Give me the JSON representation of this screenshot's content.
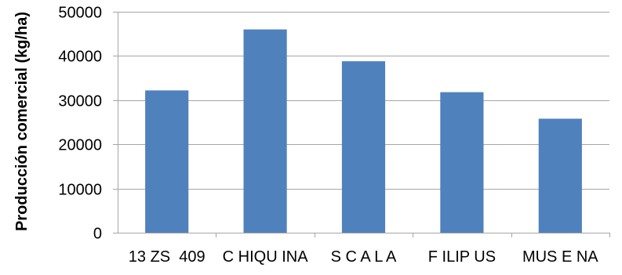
{
  "chart_data": {
    "type": "bar",
    "title": "",
    "xlabel": "",
    "ylabel": "Producción comercial (kg/ha)",
    "categories": [
      "13 ZS 409",
      "CHIQUINA",
      "SCALA",
      "FILIPUS",
      "MUSENA"
    ],
    "category_labels": [
      "13 ZS  409",
      "C HIQU INA",
      "S C A L A",
      "F ILIP US",
      "MUS E NA"
    ],
    "values": [
      32200,
      46000,
      38800,
      31800,
      25800
    ],
    "ylim": [
      0,
      50000
    ],
    "yticks": [
      0,
      10000,
      20000,
      30000,
      40000,
      50000
    ],
    "grid": true,
    "legend": "none",
    "colors": {
      "bar": "#4f81bd",
      "grid": "#a6a6a6",
      "axis": "#a6a6a6",
      "text": "#000000"
    }
  }
}
